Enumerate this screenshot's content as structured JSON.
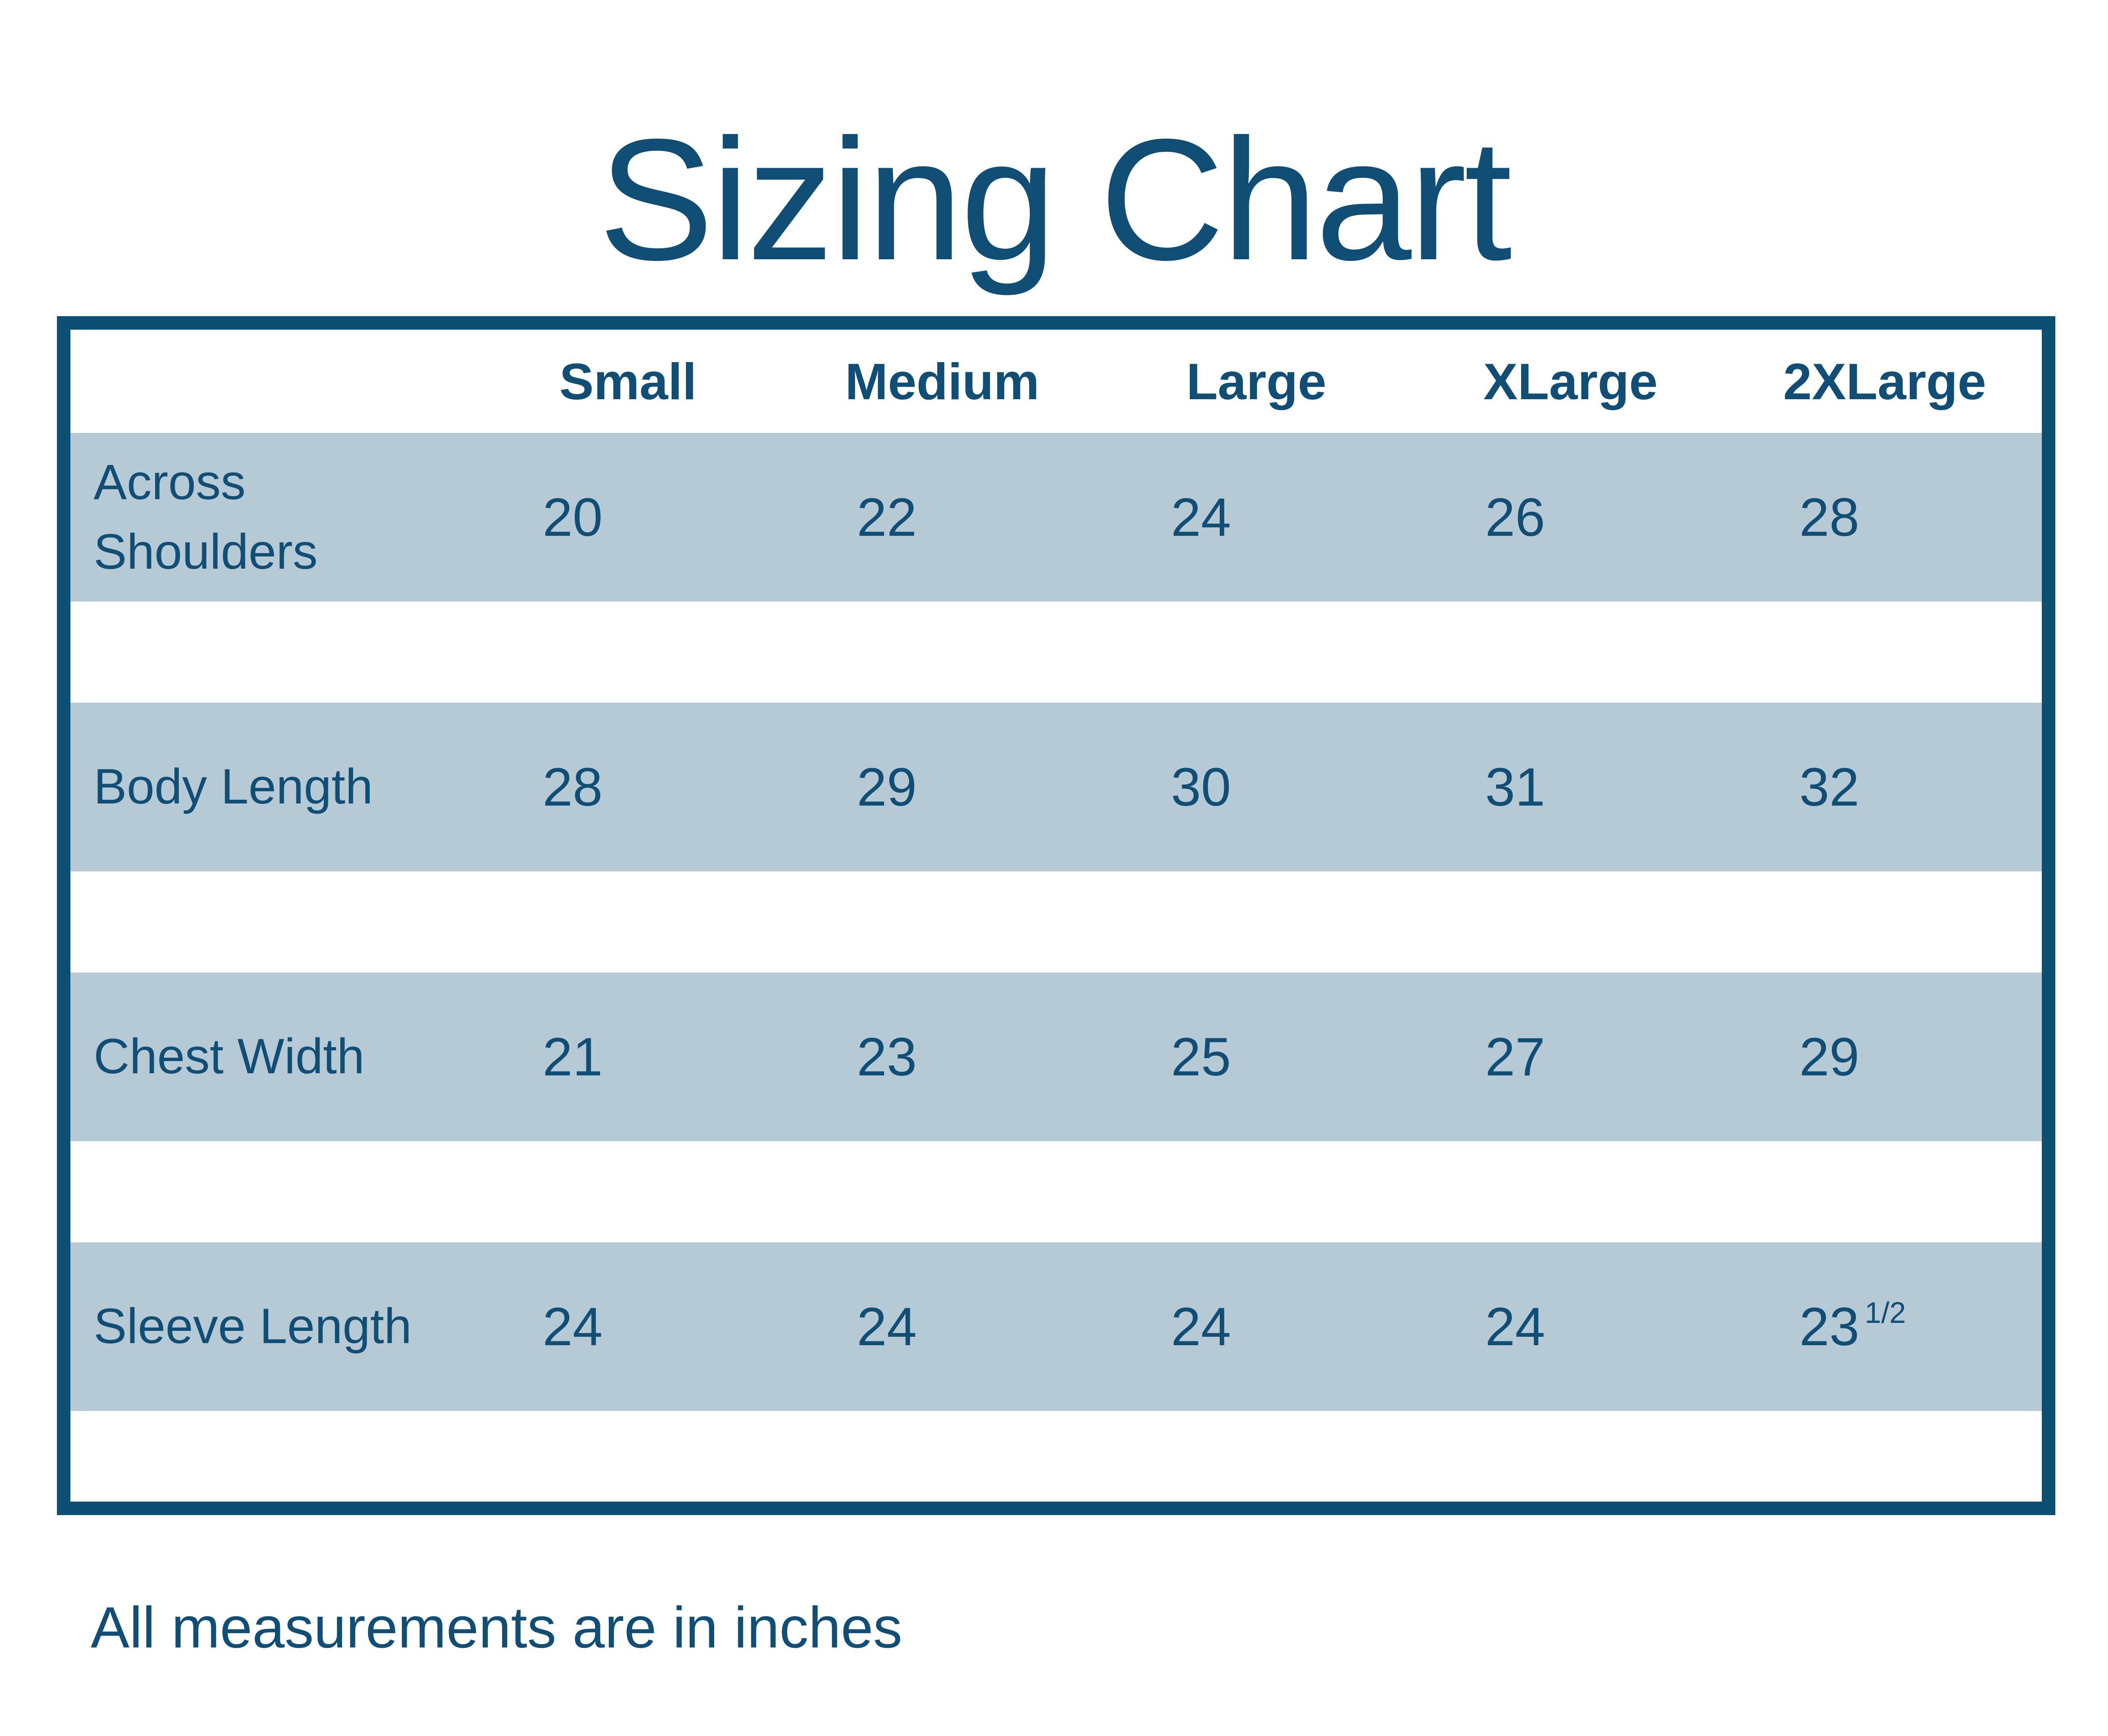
{
  "title": "Sizing Chart",
  "footer": "All measurements are in inches",
  "colors": {
    "dark_blue": "#114e75",
    "border_blue": "#0d4e73",
    "row_light_blue": "#b5cad5",
    "background": "#ffffff"
  },
  "chart_data": {
    "type": "table",
    "title": "Sizing Chart",
    "columns": [
      "Small",
      "Medium",
      "Large",
      "XLarge",
      "2XLarge"
    ],
    "rows": [
      {
        "label": "Across Shoulders",
        "values": [
          "20",
          "22",
          "24",
          "26",
          "28"
        ]
      },
      {
        "label": "Body Length",
        "values": [
          "28",
          "29",
          "30",
          "31",
          "32"
        ]
      },
      {
        "label": "Chest Width",
        "values": [
          "21",
          "23",
          "25",
          "27",
          "29"
        ]
      },
      {
        "label": "Sleeve Length",
        "values": [
          "24",
          "24",
          "24",
          "24",
          "23"
        ],
        "fraction": "1/2"
      }
    ],
    "note": "All measurements are in inches"
  }
}
